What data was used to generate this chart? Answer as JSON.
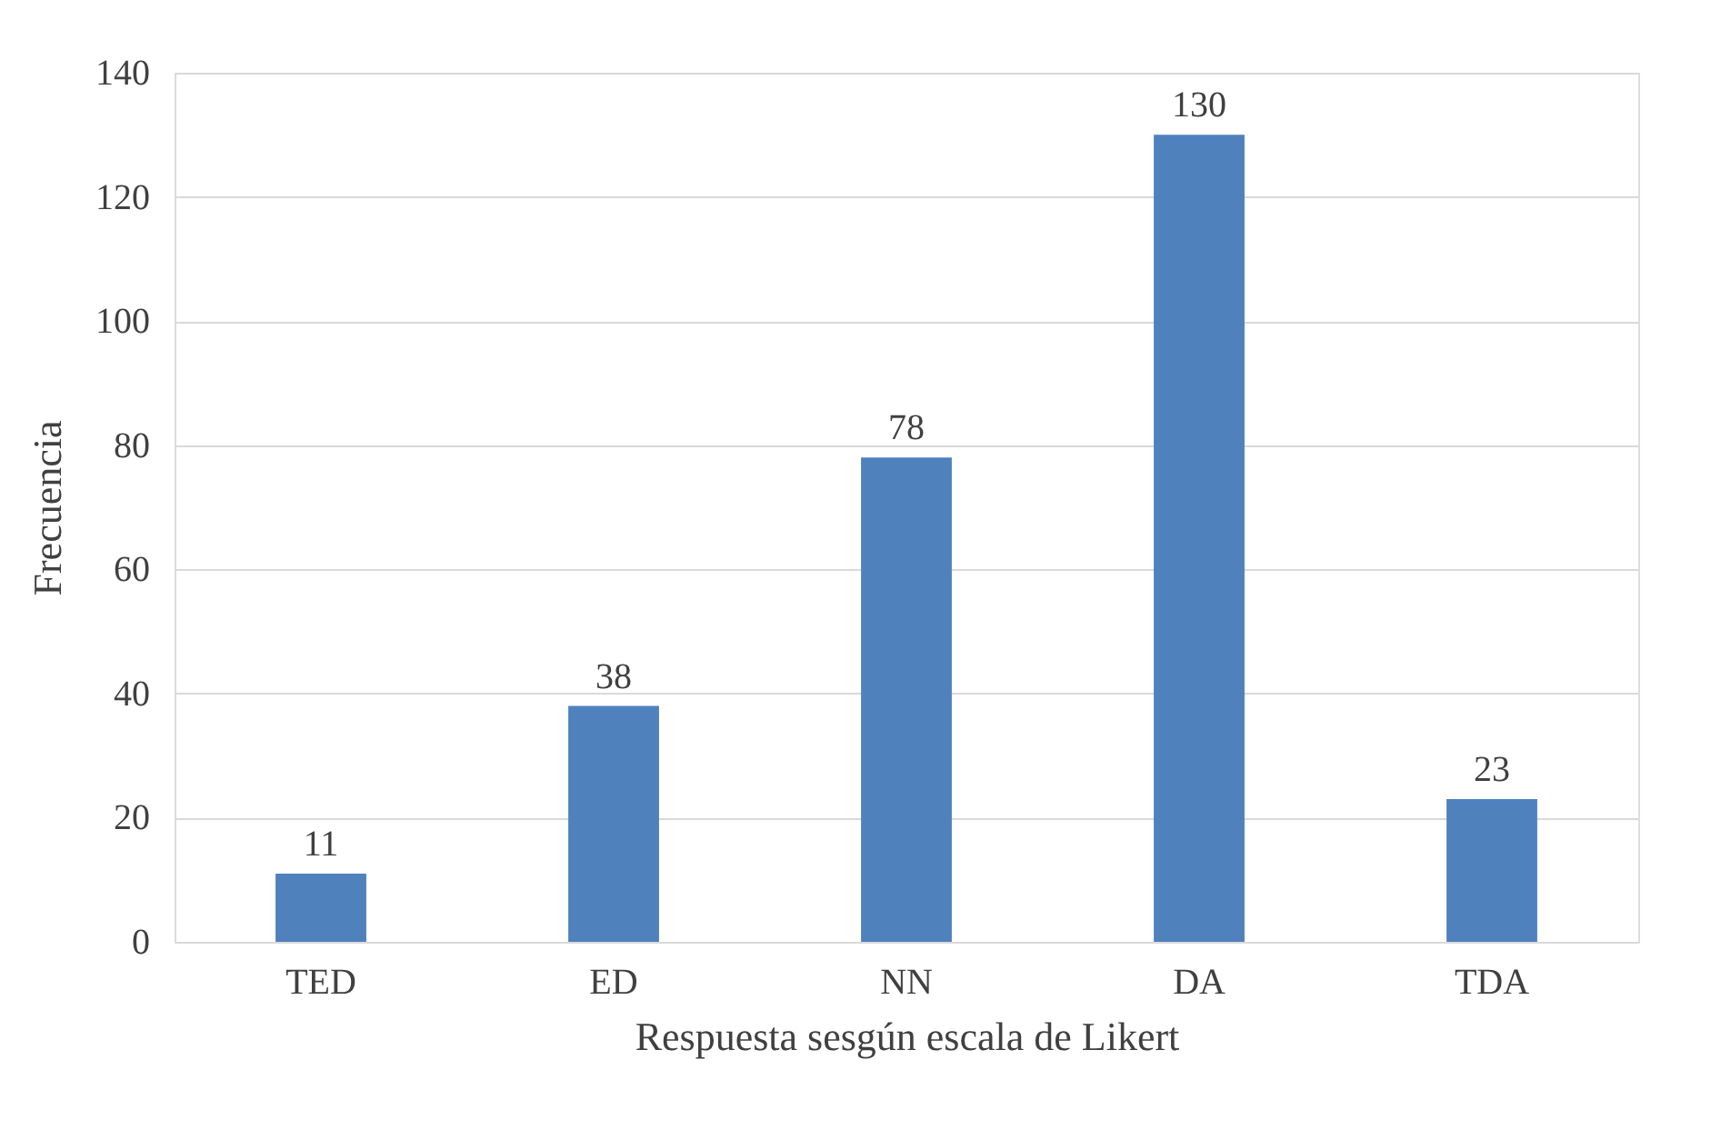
{
  "chart_data": {
    "type": "bar",
    "xlabel": "Respuesta sesgún escala de Likert",
    "ylabel": "Frecuencia",
    "categories": [
      "TED",
      "ED",
      "NN",
      "DA",
      "TDA"
    ],
    "values": [
      11,
      38,
      78,
      130,
      23
    ],
    "color": "#4f81bd",
    "ylim": [
      0,
      140
    ],
    "yticks": [
      0,
      20,
      40,
      60,
      80,
      100,
      120,
      140
    ],
    "grid": "y",
    "data_labels": true
  }
}
